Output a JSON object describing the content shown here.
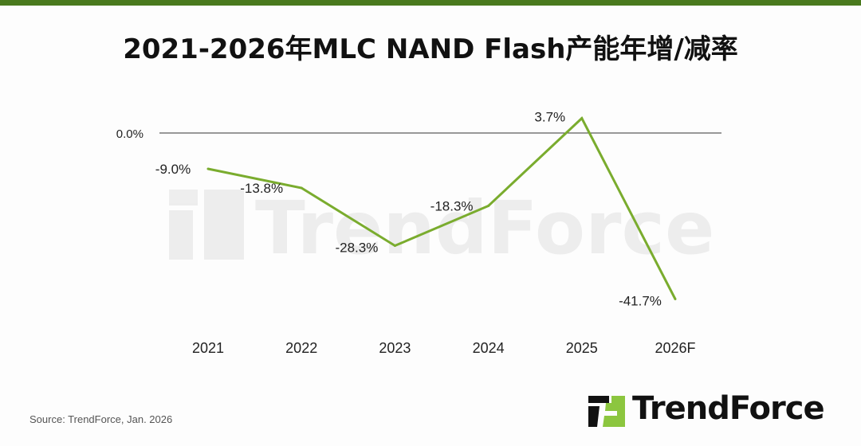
{
  "title": "2021-2026年MLC NAND Flash产能年增/减率",
  "source": "Source: TrendForce, Jan. 2026",
  "logo_text": "TrendForce",
  "watermark": "TrendForce",
  "colors": {
    "line": "#7aac2e",
    "topbar": "#4a7a1e",
    "logo_green": "#8cc63f"
  },
  "chart_data": {
    "type": "line",
    "categories": [
      "2021",
      "2022",
      "2023",
      "2024",
      "2025",
      "2026F"
    ],
    "values": [
      -9.0,
      -13.8,
      -28.3,
      -18.3,
      3.7,
      -41.7
    ],
    "data_labels": [
      "-9.0%",
      "-13.8%",
      "-28.3%",
      "-18.3%",
      "3.7%",
      "-41.7%"
    ],
    "reference_line": {
      "value": 0,
      "label": "0.0%"
    },
    "grid": false,
    "legend": "none"
  }
}
